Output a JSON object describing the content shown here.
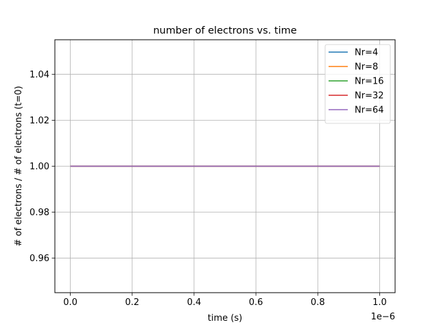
{
  "chart_data": {
    "type": "line",
    "title": "number of electrons vs. time",
    "xlabel": "time (s)",
    "ylabel": "# of electrons / # of electrons (t=0)",
    "x_offset_label": "1e−6",
    "xlim": [
      -0.05,
      1.05
    ],
    "ylim": [
      0.945,
      1.055
    ],
    "xticks": [
      0.0,
      0.2,
      0.4,
      0.6,
      0.8,
      1.0
    ],
    "xtick_labels": [
      "0.0",
      "0.2",
      "0.4",
      "0.6",
      "0.8",
      "1.0"
    ],
    "yticks": [
      0.96,
      0.98,
      1.0,
      1.02,
      1.04
    ],
    "ytick_labels": [
      "0.96",
      "0.98",
      "1.00",
      "1.02",
      "1.04"
    ],
    "grid": true,
    "legend_position": "top-right",
    "x": [
      0.0,
      1.0
    ],
    "series": [
      {
        "name": "Nr=4",
        "color": "#1f77b4",
        "values": [
          1.0,
          1.0
        ]
      },
      {
        "name": "Nr=8",
        "color": "#ff7f0e",
        "values": [
          1.0,
          1.0
        ]
      },
      {
        "name": "Nr=16",
        "color": "#2ca02c",
        "values": [
          1.0,
          1.0
        ]
      },
      {
        "name": "Nr=32",
        "color": "#d62728",
        "values": [
          1.0,
          1.0
        ]
      },
      {
        "name": "Nr=64",
        "color": "#9467bd",
        "values": [
          1.0,
          1.0
        ]
      }
    ]
  }
}
